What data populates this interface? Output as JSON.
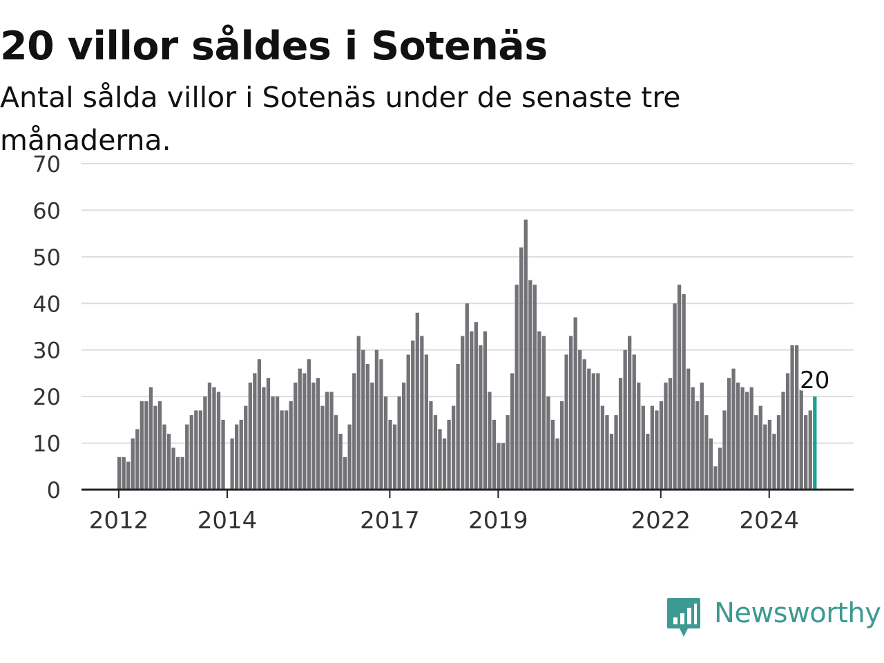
{
  "title": "20 villor såldes i Sotenäs",
  "subtitle": "Antal sålda villor i Sotenäs under de senaste tre månaderna.",
  "brand": {
    "name": "Newsworthy",
    "icon": "newsworthy-logo-icon",
    "color": "#3d9a92"
  },
  "colors": {
    "bar": "#737277",
    "highlight": "#1a9e95",
    "grid": "#dddddd",
    "axis": "#222222"
  },
  "chart_data": {
    "type": "bar",
    "title": "20 villor såldes i Sotenäs",
    "xlabel": "",
    "ylabel": "",
    "ylim": [
      0,
      70
    ],
    "yticks": [
      0,
      10,
      20,
      30,
      40,
      50,
      60,
      70
    ],
    "xticks": [
      "2012",
      "2014",
      "2017",
      "2019",
      "2022",
      "2024"
    ],
    "grid": true,
    "highlight_label": "20",
    "series": [
      {
        "values": [
          7,
          7,
          6,
          11,
          13,
          19,
          19,
          22,
          18,
          19,
          14,
          12,
          9,
          7,
          7,
          14,
          16,
          17,
          17,
          20,
          23,
          22,
          21,
          15,
          null,
          11,
          14,
          15,
          18,
          23,
          25,
          28,
          22,
          24,
          20,
          20,
          17,
          17,
          19,
          23,
          26,
          25,
          28,
          23,
          24,
          18,
          21,
          21,
          16,
          12,
          7,
          14,
          25,
          33,
          30,
          27,
          23,
          30,
          28,
          20,
          15,
          14,
          20,
          23,
          29,
          32,
          38,
          33,
          29,
          19,
          16,
          13,
          11,
          15,
          18,
          27,
          33,
          40,
          34,
          36,
          31,
          34,
          21,
          15,
          10,
          10,
          16,
          25,
          44,
          52,
          58,
          45,
          44,
          34,
          33,
          20,
          15,
          11,
          19,
          29,
          33,
          37,
          30,
          28,
          26,
          25,
          25,
          18,
          16,
          12,
          16,
          24,
          30,
          33,
          29,
          23,
          18,
          12,
          18,
          17,
          19,
          23,
          24,
          40,
          44,
          42,
          26,
          22,
          19,
          23,
          16,
          11,
          5,
          9,
          17,
          24,
          26,
          23,
          22,
          21,
          22,
          16,
          18,
          14,
          15,
          12,
          16,
          21,
          25,
          31,
          31,
          22,
          16,
          17,
          20
        ]
      }
    ]
  }
}
